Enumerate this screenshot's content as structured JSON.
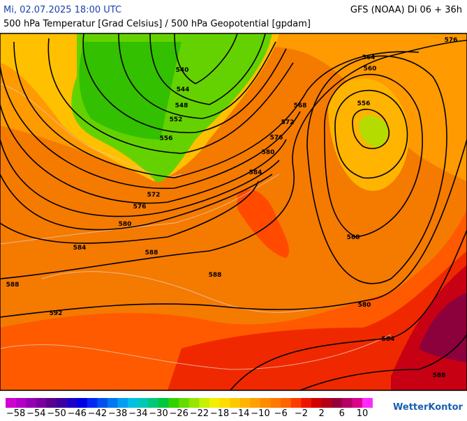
{
  "header": {
    "left": "Mi, 02.07.2025 18:00 UTC",
    "right": "GFS (NOAA) Di 06 + 36h",
    "subtitle": "500 hPa Temperatur [Grad Celsius] / 500 hPa Geopotential [gpdam]"
  },
  "contour_labels": [
    "540",
    "544",
    "548",
    "552",
    "556",
    "564",
    "560",
    "556",
    "568",
    "572",
    "576",
    "580",
    "584",
    "572",
    "576",
    "580",
    "584",
    "588",
    "588",
    "588",
    "592",
    "568",
    "580",
    "584",
    "588",
    "576"
  ],
  "colorbar": {
    "colors": [
      "#d000d0",
      "#b400c8",
      "#9600b4",
      "#7800a0",
      "#5a008c",
      "#3c00a0",
      "#1e00c8",
      "#0000e6",
      "#0028f0",
      "#0050f0",
      "#0078f0",
      "#00a0f0",
      "#00c0e6",
      "#00c8b4",
      "#00c878",
      "#00c83c",
      "#32d200",
      "#64dc00",
      "#96e600",
      "#c8f000",
      "#f0f000",
      "#ffdc00",
      "#ffc800",
      "#ffb400",
      "#ffa000",
      "#ff8c00",
      "#ff7800",
      "#ff6400",
      "#ff3c00",
      "#f01400",
      "#d20000",
      "#b40014",
      "#96003c",
      "#b40064",
      "#dc008c",
      "#ff28ff"
    ],
    "labels": [
      "−58",
      "−54",
      "−50",
      "−46",
      "−42",
      "−38",
      "−34",
      "−30",
      "−26",
      "−22",
      "−18",
      "−14",
      "−10",
      "−6",
      "−2",
      "2",
      "6",
      "10"
    ]
  },
  "brand": "WetterKontor"
}
